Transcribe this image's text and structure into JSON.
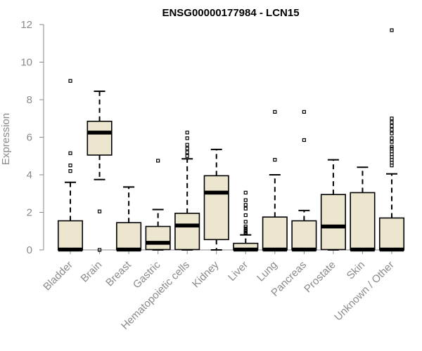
{
  "chart_data": {
    "type": "boxplot",
    "title": "ENSG00000177984 - LCN15",
    "xlabel": "",
    "ylabel": "Expression",
    "ylim": [
      0,
      12
    ],
    "yticks": [
      0,
      2,
      4,
      6,
      8,
      10,
      12
    ],
    "box_fill": "#ede6cf",
    "box_stroke": "#000000",
    "categories": [
      "Bladder",
      "Brain",
      "Breast",
      "Gastric",
      "Hematopoietic cells",
      "Kidney",
      "Liver",
      "Lung",
      "Pancreas",
      "Prostate",
      "Skin",
      "Unknown / Other"
    ],
    "boxes": [
      {
        "q1": 0,
        "median": 0.02,
        "q3": 1.55,
        "whisker_low": 0,
        "whisker_high": 3.6,
        "outliers": [
          9.0,
          5.15,
          4.5,
          4.2
        ]
      },
      {
        "q1": 5.05,
        "median": 6.25,
        "q3": 6.85,
        "whisker_low": 3.75,
        "whisker_high": 8.45,
        "outliers": [
          2.05,
          0.0
        ]
      },
      {
        "q1": 0,
        "median": 0.02,
        "q3": 1.45,
        "whisker_low": 0,
        "whisker_high": 3.35,
        "outliers": []
      },
      {
        "q1": 0.02,
        "median": 0.38,
        "q3": 1.25,
        "whisker_low": 0,
        "whisker_high": 2.15,
        "outliers": [
          4.75
        ]
      },
      {
        "q1": 0.02,
        "median": 1.3,
        "q3": 1.95,
        "whisker_low": 0,
        "whisker_high": 4.85,
        "outliers": [
          6.25,
          5.95,
          5.6,
          5.4,
          5.2,
          5.0
        ]
      },
      {
        "q1": 0.55,
        "median": 3.05,
        "q3": 3.95,
        "whisker_low": 0,
        "whisker_high": 5.35,
        "outliers": []
      },
      {
        "q1": 0,
        "median": 0.02,
        "q3": 0.35,
        "whisker_low": 0,
        "whisker_high": 0.8,
        "outliers": [
          3.05,
          2.65,
          2.4,
          2.2,
          1.85,
          1.5,
          1.25,
          1.15,
          1.05,
          0.98,
          0.92,
          0.87
        ]
      },
      {
        "q1": 0,
        "median": 0.02,
        "q3": 1.75,
        "whisker_low": 0,
        "whisker_high": 4.0,
        "outliers": [
          7.35,
          4.8
        ]
      },
      {
        "q1": 0,
        "median": 0.02,
        "q3": 1.55,
        "whisker_low": 0,
        "whisker_high": 2.1,
        "outliers": [
          7.35,
          5.85
        ]
      },
      {
        "q1": 0.02,
        "median": 1.25,
        "q3": 2.95,
        "whisker_low": 0,
        "whisker_high": 4.8,
        "outliers": []
      },
      {
        "q1": 0,
        "median": 0.02,
        "q3": 3.05,
        "whisker_low": 0,
        "whisker_high": 4.4,
        "outliers": []
      },
      {
        "q1": 0,
        "median": 0.02,
        "q3": 1.7,
        "whisker_low": 0,
        "whisker_high": 4.05,
        "outliers": [
          11.7,
          7.0,
          6.8,
          6.6,
          6.4,
          6.2,
          5.95,
          5.75,
          5.5,
          5.4,
          5.25,
          5.1,
          4.95,
          4.8,
          4.65,
          4.5
        ]
      }
    ]
  }
}
